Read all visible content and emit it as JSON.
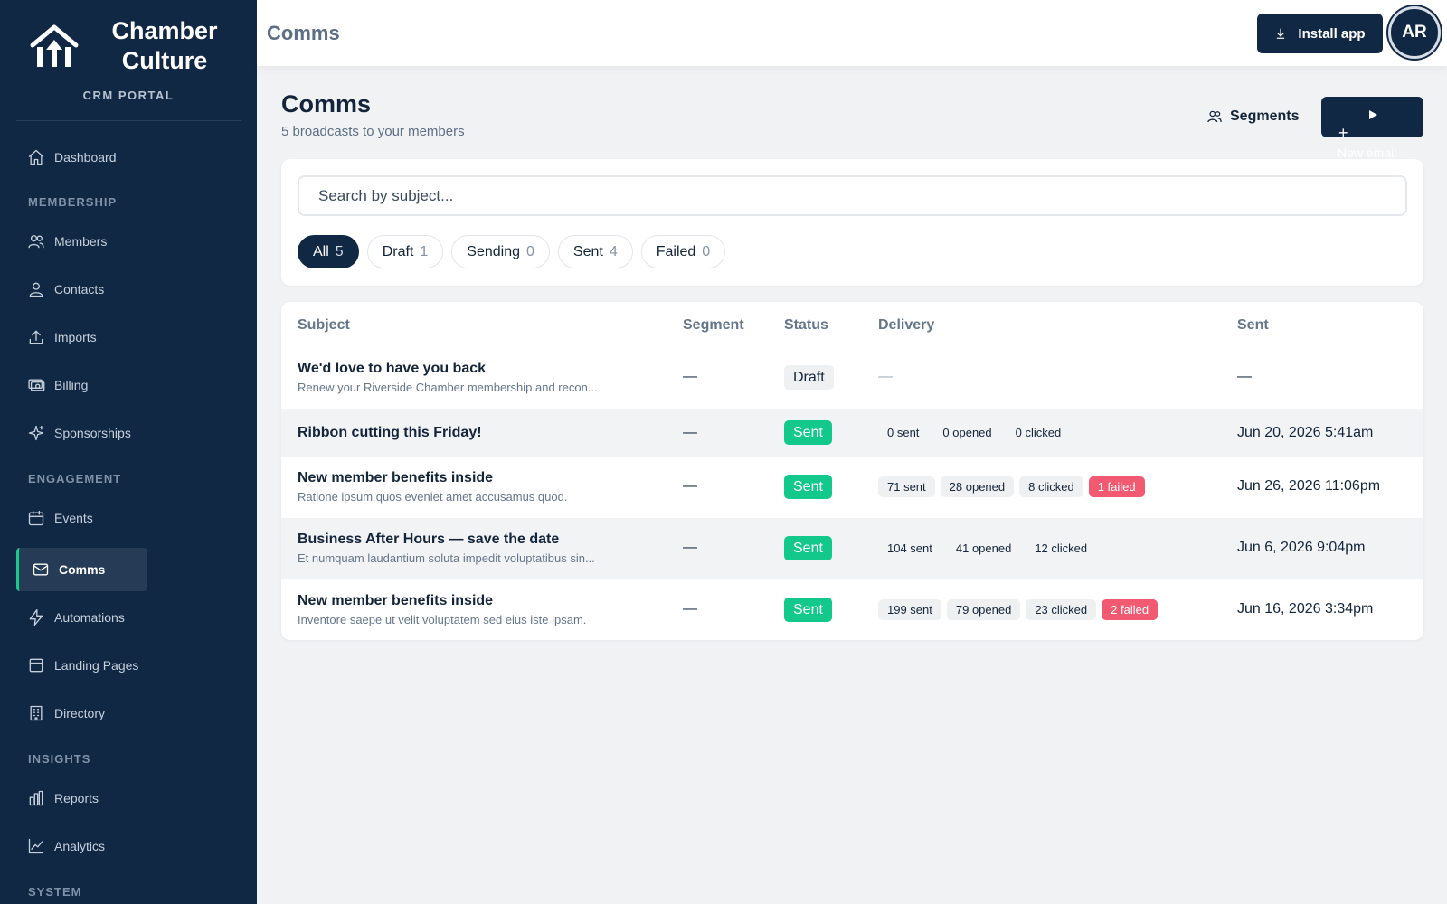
{
  "sidebar": {
    "brand_line1": "Chamber",
    "brand_line2": "Culture",
    "portal": "CRM PORTAL",
    "items": {
      "dashboard": "Dashboard",
      "members": "Members",
      "contacts": "Contacts",
      "imports": "Imports",
      "billing": "Billing",
      "sponsorships": "Sponsorships",
      "events": "Events",
      "comms": "Comms",
      "automations": "Automations",
      "landing_pages": "Landing Pages",
      "directory": "Directory",
      "reports": "Reports",
      "analytics": "Analytics"
    },
    "sections": {
      "membership": "MEMBERSHIP",
      "engagement": "ENGAGEMENT",
      "insights": "INSIGHTS",
      "system": "SYSTEM"
    },
    "active_item": "comms"
  },
  "topbar": {
    "title": "Comms",
    "install_label": "Install app",
    "avatar_initials": "AR"
  },
  "header": {
    "title": "Comms",
    "subtitle": "5 broadcasts to your members",
    "segments_label": "Segments",
    "new_email_label": "New email"
  },
  "search": {
    "placeholder": "Search by subject..."
  },
  "filters": [
    {
      "label": "All",
      "count": "5",
      "active": true
    },
    {
      "label": "Draft",
      "count": "1",
      "active": false
    },
    {
      "label": "Sending",
      "count": "0",
      "active": false
    },
    {
      "label": "Sent",
      "count": "4",
      "active": false
    },
    {
      "label": "Failed",
      "count": "0",
      "active": false
    }
  ],
  "table": {
    "headers": {
      "subject": "Subject",
      "segment": "Segment",
      "status": "Status",
      "delivery": "Delivery",
      "sent": "Sent"
    },
    "rows": [
      {
        "subject": "We'd love to have you back",
        "preview": "Renew your Riverside Chamber membership and recon...",
        "segment": "—",
        "status": "Draft",
        "delivery_empty": "—",
        "sent_at": "—"
      },
      {
        "subject": "Ribbon cutting this Friday!",
        "preview": "",
        "segment": "—",
        "status": "Sent",
        "delivery": {
          "sent": "0 sent",
          "opened": "0 opened",
          "clicked": "0 clicked",
          "failed": ""
        },
        "sent_at": "Jun 20, 2026 5:41am"
      },
      {
        "subject": "New member benefits inside",
        "preview": "Ratione ipsum quos eveniet amet accusamus quod.",
        "segment": "—",
        "status": "Sent",
        "delivery": {
          "sent": "71 sent",
          "opened": "28 opened",
          "clicked": "8 clicked",
          "failed": "1 failed"
        },
        "sent_at": "Jun 26, 2026 11:06pm"
      },
      {
        "subject": "Business After Hours — save the date",
        "preview": "Et numquam laudantium soluta impedit voluptatibus sin...",
        "segment": "—",
        "status": "Sent",
        "delivery": {
          "sent": "104 sent",
          "opened": "41 opened",
          "clicked": "12 clicked",
          "failed": ""
        },
        "sent_at": "Jun 6, 2026 9:04pm"
      },
      {
        "subject": "New member benefits inside",
        "preview": "Inventore saepe ut velit voluptatem sed eius iste ipsam.",
        "segment": "—",
        "status": "Sent",
        "delivery": {
          "sent": "199 sent",
          "opened": "79 opened",
          "clicked": "23 clicked",
          "failed": "2 failed"
        },
        "sent_at": "Jun 16, 2026 3:34pm"
      }
    ]
  },
  "colors": {
    "sidebar_bg": "#112844",
    "accent_green": "#12c88a",
    "failed_red": "#f25a72",
    "page_bg": "#f1f2f4"
  },
  "icons": {
    "dashboard": "home-icon",
    "members": "users-icon",
    "contacts": "user-icon",
    "imports": "upload-icon",
    "billing": "billing-icon",
    "sponsorships": "sparkle-icon",
    "events": "calendar-icon",
    "comms": "mail-icon",
    "automations": "lightning-icon",
    "landing_pages": "layout-icon",
    "directory": "building-icon",
    "reports": "bar-chart-icon",
    "analytics": "line-chart-icon",
    "install": "download-icon",
    "segments": "users-icon",
    "new_email": "play-icon"
  }
}
